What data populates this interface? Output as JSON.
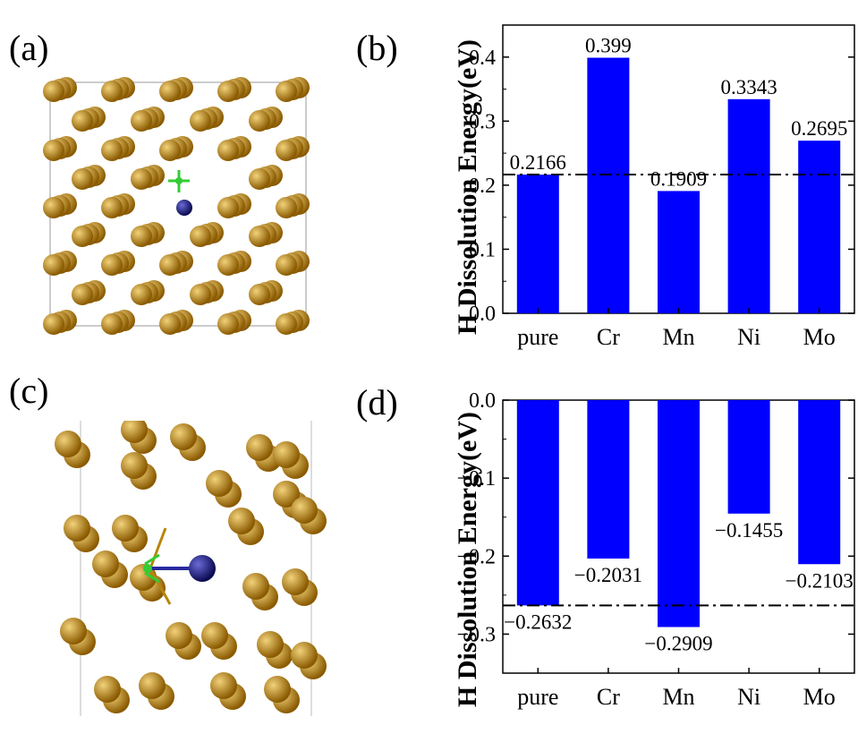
{
  "panels": {
    "a": "(a)",
    "b": "(b)",
    "c": "(c)",
    "d": "(d)"
  },
  "colors": {
    "bar": "#0000ff",
    "atom_fe": "#b8860b",
    "atom_h": "#1a1a8c",
    "bond": "#33cc33"
  },
  "chart_data": [
    {
      "type": "bar",
      "categories": [
        "pure",
        "Cr",
        "Mn",
        "Ni",
        "Mo"
      ],
      "values": [
        0.2166,
        0.399,
        0.1909,
        0.3343,
        0.2695
      ],
      "value_labels": [
        "0.2166",
        "0.399",
        "0.1909",
        "0.3343",
        "0.2695"
      ],
      "ylabel": "H Dissolution Energy(eV)",
      "xlabel": "",
      "ylim": [
        0,
        0.45
      ],
      "yticks": [
        0.0,
        0.1,
        0.2,
        0.3,
        0.4
      ],
      "ytick_labels": [
        "0.0",
        "0.1",
        "0.2",
        "0.3",
        "0.4"
      ],
      "reference_line": 0.2166,
      "reference_style": "dash-dot"
    },
    {
      "type": "bar",
      "categories": [
        "pure",
        "Cr",
        "Mn",
        "Ni",
        "Mo"
      ],
      "values": [
        -0.2632,
        -0.2031,
        -0.2909,
        -0.1455,
        -0.2103
      ],
      "value_labels": [
        "−0.2632",
        "−0.2031",
        "−0.2909",
        "−0.1455",
        "−0.2103"
      ],
      "ylabel": "H Dissolution Energy(eV)",
      "xlabel": "",
      "ylim": [
        -0.35,
        0
      ],
      "yticks": [
        0.0,
        -0.1,
        -0.2,
        -0.3
      ],
      "ytick_labels": [
        "0.0",
        "−0.1",
        "−0.2",
        "−0.3"
      ],
      "reference_line": -0.2632,
      "reference_style": "dash-dot"
    }
  ]
}
